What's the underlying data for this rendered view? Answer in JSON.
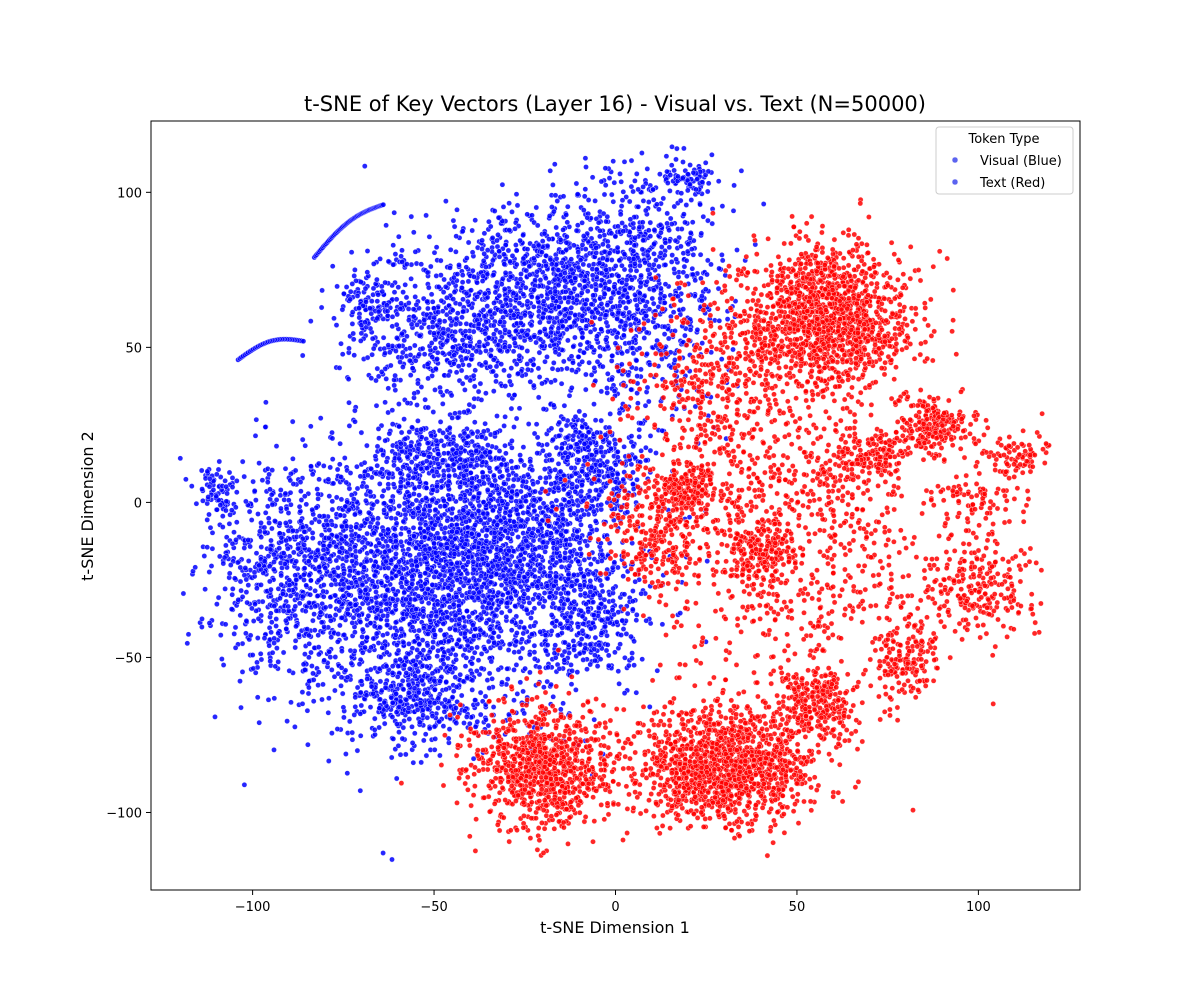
{
  "chart_data": {
    "type": "scatter",
    "title": "t-SNE of Key Vectors (Layer 16) - Visual vs. Text (N=50000)",
    "xlabel": "t-SNE Dimension 1",
    "ylabel": "t-SNE Dimension 2",
    "xlim": [
      -128,
      128
    ],
    "ylim": [
      -125,
      123
    ],
    "xticks": [
      -100,
      -50,
      0,
      50,
      100
    ],
    "xtick_labels": [
      "−100",
      "−50",
      "0",
      "50",
      "100"
    ],
    "yticks": [
      -100,
      -50,
      0,
      50,
      100
    ],
    "ytick_labels": [
      "−100",
      "−50",
      "0",
      "50",
      "100"
    ],
    "grid": false,
    "legend": {
      "title": "Token Type",
      "placement": "top-right",
      "entries": [
        "Visual (Blue)",
        "Text (Red)"
      ],
      "marker_color": "#5b63f0"
    },
    "series": [
      {
        "name": "Visual (Blue)",
        "color": "#0000ff",
        "approx_count": 25000,
        "clusters": [
          {
            "cx": -55,
            "cy": -25,
            "sx": 24,
            "sy": 22,
            "n": 2600
          },
          {
            "cx": -30,
            "cy": -10,
            "sx": 14,
            "sy": 14,
            "n": 900
          },
          {
            "cx": -90,
            "cy": -20,
            "sx": 10,
            "sy": 14,
            "n": 350
          },
          {
            "cx": -55,
            "cy": -62,
            "sx": 10,
            "sy": 8,
            "n": 350
          },
          {
            "cx": -8,
            "cy": -35,
            "sx": 8,
            "sy": 12,
            "n": 350
          },
          {
            "cx": -5,
            "cy": 10,
            "sx": 7,
            "sy": 7,
            "n": 250
          },
          {
            "cx": -48,
            "cy": 15,
            "sx": 10,
            "sy": 6,
            "n": 300
          },
          {
            "cx": -20,
            "cy": 68,
            "sx": 16,
            "sy": 15,
            "n": 1000
          },
          {
            "cx": 5,
            "cy": 70,
            "sx": 12,
            "sy": 22,
            "n": 800
          },
          {
            "cx": -50,
            "cy": 55,
            "sx": 12,
            "sy": 12,
            "n": 500
          },
          {
            "cx": -68,
            "cy": 65,
            "sx": 4,
            "sy": 5,
            "n": 90
          },
          {
            "cx": 20,
            "cy": 104,
            "sx": 4,
            "sy": 3,
            "n": 60
          },
          {
            "cx": -110,
            "cy": 3,
            "sx": 3,
            "sy": 4,
            "n": 60
          },
          {
            "cx": -10,
            "cy": 22,
            "sx": 4,
            "sy": 3,
            "n": 70
          }
        ],
        "arcs": [
          {
            "x0": -83,
            "y0": 79,
            "x1": -64,
            "y1": 96,
            "n": 60
          },
          {
            "x0": -104,
            "y0": 46,
            "x1": -86,
            "y1": 52,
            "n": 40
          }
        ]
      },
      {
        "name": "Text (Red)",
        "color": "#ff0000",
        "approx_count": 25000,
        "clusters": [
          {
            "cx": 58,
            "cy": 60,
            "sx": 11,
            "sy": 11,
            "n": 1400
          },
          {
            "cx": 30,
            "cy": -85,
            "sx": 12,
            "sy": 9,
            "n": 1400
          },
          {
            "cx": -20,
            "cy": -85,
            "sx": 10,
            "sy": 10,
            "n": 900
          },
          {
            "cx": 50,
            "cy": -5,
            "sx": 22,
            "sy": 30,
            "n": 1000
          },
          {
            "cx": 20,
            "cy": 5,
            "sx": 4,
            "sy": 4,
            "n": 180
          },
          {
            "cx": 88,
            "cy": 25,
            "sx": 5,
            "sy": 4,
            "n": 200
          },
          {
            "cx": 100,
            "cy": -28,
            "sx": 8,
            "sy": 8,
            "n": 220
          },
          {
            "cx": 55,
            "cy": -65,
            "sx": 6,
            "sy": 6,
            "n": 260
          },
          {
            "cx": 80,
            "cy": -50,
            "sx": 5,
            "sy": 7,
            "n": 160
          },
          {
            "cx": 110,
            "cy": 15,
            "sx": 5,
            "sy": 4,
            "n": 90
          },
          {
            "cx": 70,
            "cy": 15,
            "sx": 6,
            "sy": 4,
            "n": 150
          },
          {
            "cx": 40,
            "cy": -15,
            "sx": 5,
            "sy": 6,
            "n": 200
          },
          {
            "cx": 10,
            "cy": -10,
            "sx": 7,
            "sy": 9,
            "n": 250
          },
          {
            "cx": 28,
            "cy": 40,
            "sx": 12,
            "sy": 14,
            "n": 320
          },
          {
            "cx": 100,
            "cy": 0,
            "sx": 6,
            "sy": 4,
            "n": 80
          }
        ]
      }
    ]
  }
}
